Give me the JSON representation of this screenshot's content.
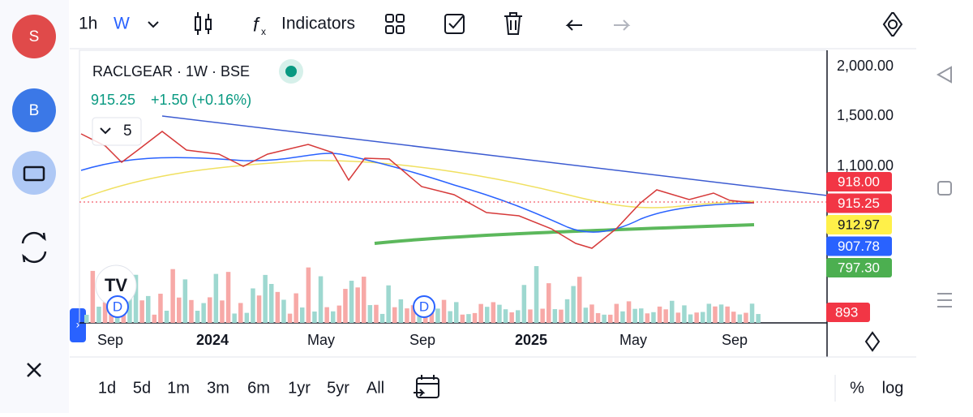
{
  "sidebar": {
    "buttons": [
      {
        "label": "S",
        "color": "#e04a4a"
      },
      {
        "label": "B",
        "color": "#3b78e7"
      }
    ]
  },
  "toolbar": {
    "interval": "1h",
    "chart_style": "W",
    "indicators": "Indicators"
  },
  "legend": {
    "symbol": "RACLGEAR · 1W · BSE",
    "price": "915.25",
    "change": "+1.50 (+0.16%)",
    "collapse_count": "5"
  },
  "price_axis": {
    "ticks": [
      "2,000.00",
      "1,500.00",
      "1,100.00"
    ]
  },
  "price_badges": [
    {
      "label": "918.00",
      "color": "#f23645",
      "text_color": "#ffffff"
    },
    {
      "label": "915.25",
      "color": "#f23645",
      "text_color": "#ffffff"
    },
    {
      "label": "912.97",
      "color": "#fff049",
      "text_color": "#131722"
    },
    {
      "label": "907.78",
      "color": "#2962ff",
      "text_color": "#ffffff"
    },
    {
      "label": "797.30",
      "color": "#4caf50",
      "text_color": "#ffffff"
    }
  ],
  "volume_badge": {
    "label": "893",
    "color": "#f23645"
  },
  "events": [
    "D",
    "D"
  ],
  "time_axis": [
    "Sep",
    "2024",
    "May",
    "Sep",
    "2025",
    "May",
    "Sep"
  ],
  "ranges": [
    "1d",
    "5d",
    "1m",
    "3m",
    "6m",
    "1yr",
    "5yr",
    "All"
  ],
  "scale": [
    "%",
    "log"
  ]
}
